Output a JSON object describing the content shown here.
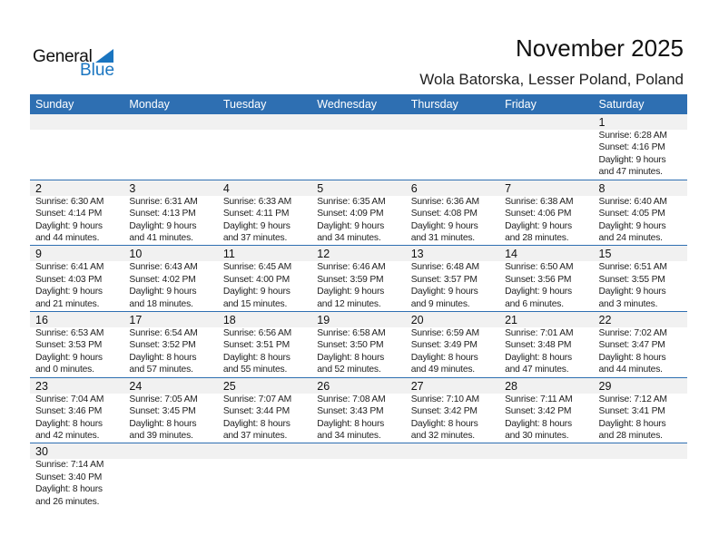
{
  "logo": {
    "line1": "General",
    "line2": "Blue"
  },
  "header": {
    "title": "November 2025",
    "location": "Wola Batorska, Lesser Poland, Poland"
  },
  "weekdays": [
    "Sunday",
    "Monday",
    "Tuesday",
    "Wednesday",
    "Thursday",
    "Friday",
    "Saturday"
  ],
  "weeks": [
    [
      null,
      null,
      null,
      null,
      null,
      null,
      {
        "day": "1",
        "sunrise": "Sunrise: 6:28 AM",
        "sunset": "Sunset: 4:16 PM",
        "daylight1": "Daylight: 9 hours",
        "daylight2": "and 47 minutes."
      }
    ],
    [
      {
        "day": "2",
        "sunrise": "Sunrise: 6:30 AM",
        "sunset": "Sunset: 4:14 PM",
        "daylight1": "Daylight: 9 hours",
        "daylight2": "and 44 minutes."
      },
      {
        "day": "3",
        "sunrise": "Sunrise: 6:31 AM",
        "sunset": "Sunset: 4:13 PM",
        "daylight1": "Daylight: 9 hours",
        "daylight2": "and 41 minutes."
      },
      {
        "day": "4",
        "sunrise": "Sunrise: 6:33 AM",
        "sunset": "Sunset: 4:11 PM",
        "daylight1": "Daylight: 9 hours",
        "daylight2": "and 37 minutes."
      },
      {
        "day": "5",
        "sunrise": "Sunrise: 6:35 AM",
        "sunset": "Sunset: 4:09 PM",
        "daylight1": "Daylight: 9 hours",
        "daylight2": "and 34 minutes."
      },
      {
        "day": "6",
        "sunrise": "Sunrise: 6:36 AM",
        "sunset": "Sunset: 4:08 PM",
        "daylight1": "Daylight: 9 hours",
        "daylight2": "and 31 minutes."
      },
      {
        "day": "7",
        "sunrise": "Sunrise: 6:38 AM",
        "sunset": "Sunset: 4:06 PM",
        "daylight1": "Daylight: 9 hours",
        "daylight2": "and 28 minutes."
      },
      {
        "day": "8",
        "sunrise": "Sunrise: 6:40 AM",
        "sunset": "Sunset: 4:05 PM",
        "daylight1": "Daylight: 9 hours",
        "daylight2": "and 24 minutes."
      }
    ],
    [
      {
        "day": "9",
        "sunrise": "Sunrise: 6:41 AM",
        "sunset": "Sunset: 4:03 PM",
        "daylight1": "Daylight: 9 hours",
        "daylight2": "and 21 minutes."
      },
      {
        "day": "10",
        "sunrise": "Sunrise: 6:43 AM",
        "sunset": "Sunset: 4:02 PM",
        "daylight1": "Daylight: 9 hours",
        "daylight2": "and 18 minutes."
      },
      {
        "day": "11",
        "sunrise": "Sunrise: 6:45 AM",
        "sunset": "Sunset: 4:00 PM",
        "daylight1": "Daylight: 9 hours",
        "daylight2": "and 15 minutes."
      },
      {
        "day": "12",
        "sunrise": "Sunrise: 6:46 AM",
        "sunset": "Sunset: 3:59 PM",
        "daylight1": "Daylight: 9 hours",
        "daylight2": "and 12 minutes."
      },
      {
        "day": "13",
        "sunrise": "Sunrise: 6:48 AM",
        "sunset": "Sunset: 3:57 PM",
        "daylight1": "Daylight: 9 hours",
        "daylight2": "and 9 minutes."
      },
      {
        "day": "14",
        "sunrise": "Sunrise: 6:50 AM",
        "sunset": "Sunset: 3:56 PM",
        "daylight1": "Daylight: 9 hours",
        "daylight2": "and 6 minutes."
      },
      {
        "day": "15",
        "sunrise": "Sunrise: 6:51 AM",
        "sunset": "Sunset: 3:55 PM",
        "daylight1": "Daylight: 9 hours",
        "daylight2": "and 3 minutes."
      }
    ],
    [
      {
        "day": "16",
        "sunrise": "Sunrise: 6:53 AM",
        "sunset": "Sunset: 3:53 PM",
        "daylight1": "Daylight: 9 hours",
        "daylight2": "and 0 minutes."
      },
      {
        "day": "17",
        "sunrise": "Sunrise: 6:54 AM",
        "sunset": "Sunset: 3:52 PM",
        "daylight1": "Daylight: 8 hours",
        "daylight2": "and 57 minutes."
      },
      {
        "day": "18",
        "sunrise": "Sunrise: 6:56 AM",
        "sunset": "Sunset: 3:51 PM",
        "daylight1": "Daylight: 8 hours",
        "daylight2": "and 55 minutes."
      },
      {
        "day": "19",
        "sunrise": "Sunrise: 6:58 AM",
        "sunset": "Sunset: 3:50 PM",
        "daylight1": "Daylight: 8 hours",
        "daylight2": "and 52 minutes."
      },
      {
        "day": "20",
        "sunrise": "Sunrise: 6:59 AM",
        "sunset": "Sunset: 3:49 PM",
        "daylight1": "Daylight: 8 hours",
        "daylight2": "and 49 minutes."
      },
      {
        "day": "21",
        "sunrise": "Sunrise: 7:01 AM",
        "sunset": "Sunset: 3:48 PM",
        "daylight1": "Daylight: 8 hours",
        "daylight2": "and 47 minutes."
      },
      {
        "day": "22",
        "sunrise": "Sunrise: 7:02 AM",
        "sunset": "Sunset: 3:47 PM",
        "daylight1": "Daylight: 8 hours",
        "daylight2": "and 44 minutes."
      }
    ],
    [
      {
        "day": "23",
        "sunrise": "Sunrise: 7:04 AM",
        "sunset": "Sunset: 3:46 PM",
        "daylight1": "Daylight: 8 hours",
        "daylight2": "and 42 minutes."
      },
      {
        "day": "24",
        "sunrise": "Sunrise: 7:05 AM",
        "sunset": "Sunset: 3:45 PM",
        "daylight1": "Daylight: 8 hours",
        "daylight2": "and 39 minutes."
      },
      {
        "day": "25",
        "sunrise": "Sunrise: 7:07 AM",
        "sunset": "Sunset: 3:44 PM",
        "daylight1": "Daylight: 8 hours",
        "daylight2": "and 37 minutes."
      },
      {
        "day": "26",
        "sunrise": "Sunrise: 7:08 AM",
        "sunset": "Sunset: 3:43 PM",
        "daylight1": "Daylight: 8 hours",
        "daylight2": "and 34 minutes."
      },
      {
        "day": "27",
        "sunrise": "Sunrise: 7:10 AM",
        "sunset": "Sunset: 3:42 PM",
        "daylight1": "Daylight: 8 hours",
        "daylight2": "and 32 minutes."
      },
      {
        "day": "28",
        "sunrise": "Sunrise: 7:11 AM",
        "sunset": "Sunset: 3:42 PM",
        "daylight1": "Daylight: 8 hours",
        "daylight2": "and 30 minutes."
      },
      {
        "day": "29",
        "sunrise": "Sunrise: 7:12 AM",
        "sunset": "Sunset: 3:41 PM",
        "daylight1": "Daylight: 8 hours",
        "daylight2": "and 28 minutes."
      }
    ],
    [
      {
        "day": "30",
        "sunrise": "Sunrise: 7:14 AM",
        "sunset": "Sunset: 3:40 PM",
        "daylight1": "Daylight: 8 hours",
        "daylight2": "and 26 minutes."
      },
      null,
      null,
      null,
      null,
      null,
      null
    ]
  ]
}
